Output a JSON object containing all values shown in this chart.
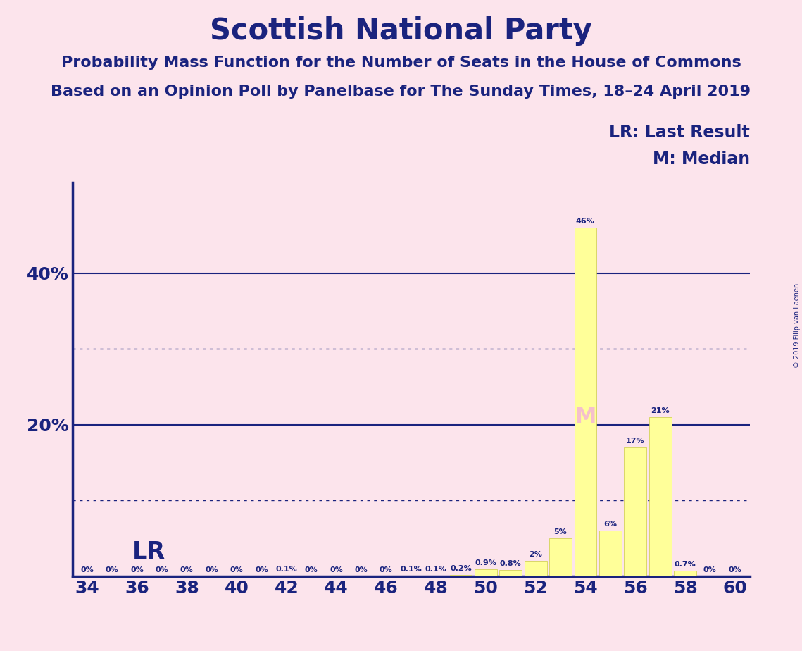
{
  "title": "Scottish National Party",
  "subtitle1": "Probability Mass Function for the Number of Seats in the House of Commons",
  "subtitle2": "Based on an Opinion Poll by Panelbase for The Sunday Times, 18–24 April 2019",
  "copyright": "© 2019 Filip van Laenen",
  "background_color": "#fce4ec",
  "bar_color": "#ffff99",
  "bar_edge_color": "#cccc44",
  "text_color": "#1a237e",
  "seats": [
    34,
    35,
    36,
    37,
    38,
    39,
    40,
    41,
    42,
    43,
    44,
    45,
    46,
    47,
    48,
    49,
    50,
    51,
    52,
    53,
    54,
    55,
    56,
    57,
    58,
    59,
    60
  ],
  "values": [
    0.0,
    0.0,
    0.0,
    0.0,
    0.0,
    0.0,
    0.0,
    0.0,
    0.1,
    0.0,
    0.0,
    0.0,
    0.0,
    0.1,
    0.1,
    0.2,
    0.9,
    0.8,
    2.0,
    5.0,
    46.0,
    6.0,
    17.0,
    21.0,
    0.7,
    0.0,
    0.0
  ],
  "median_seat": 54,
  "ymax": 52,
  "major_gridlines": [
    20,
    40
  ],
  "minor_gridlines": [
    10,
    30
  ],
  "ytick_labels": [
    "20%",
    "40%"
  ],
  "ytick_values": [
    20,
    40
  ],
  "legend_lr": "LR: Last Result",
  "legend_m": "M: Median",
  "lr_label": "LR",
  "m_label": "M",
  "bar_label_fontsize": 8.0,
  "axis_label_fontsize": 18,
  "title_fontsize": 30,
  "subtitle_fontsize": 16,
  "legend_fontsize": 17
}
